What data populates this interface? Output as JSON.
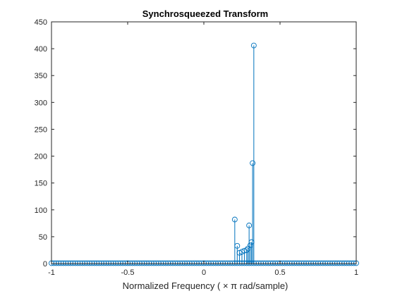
{
  "chart_data": {
    "type": "stem",
    "title": "Synchrosqueezed Transform",
    "xlabel": "Normalized  Frequency  ( × π   rad/sample)",
    "ylabel": "",
    "xlim": [
      -1,
      1
    ],
    "ylim": [
      0,
      450
    ],
    "xticks": [
      -1,
      -0.5,
      0,
      0.5,
      1
    ],
    "xtick_labels": [
      "-1",
      "-0.5",
      "0",
      "0.5",
      "1"
    ],
    "yticks": [
      0,
      50,
      100,
      150,
      200,
      250,
      300,
      350,
      400,
      450
    ],
    "ytick_labels": [
      "0",
      "50",
      "100",
      "150",
      "200",
      "250",
      "300",
      "350",
      "400",
      "450"
    ],
    "grid": false,
    "marker": "circle",
    "color": "#0072BD",
    "baseline": {
      "x_start": -1,
      "x_end": 1,
      "step": 0.015625,
      "y": 0.8
    },
    "series": [
      {
        "x": [
          0.203,
          0.219,
          0.234,
          0.25,
          0.266,
          0.281,
          0.289,
          0.297,
          0.305,
          0.313,
          0.32,
          0.328
        ],
        "y": [
          82,
          33,
          20,
          22,
          24,
          25,
          28,
          71,
          34,
          40,
          187,
          406
        ]
      }
    ]
  }
}
